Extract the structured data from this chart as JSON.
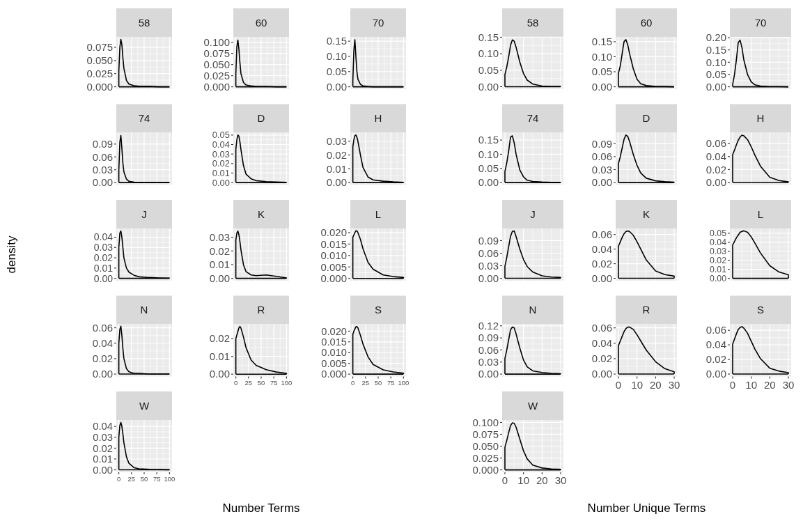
{
  "chart_data": [
    {
      "type": "line",
      "title": "58",
      "x": [
        0,
        0,
        2,
        4,
        6,
        8,
        10,
        15,
        20,
        30,
        40,
        60,
        80,
        100,
        100
      ],
      "values": [
        0,
        0.03,
        0.075,
        0.09,
        0.08,
        0.055,
        0.035,
        0.012,
        0.005,
        0.002,
        0.001,
        0.001,
        0,
        0,
        0
      ],
      "color": "#000000",
      "ref_lines": [
        {
          "axis": "y",
          "value": 0,
          "color": "#000000"
        }
      ],
      "xlim": [
        -5,
        105
      ],
      "xticks": [
        0,
        25,
        50,
        75,
        100
      ],
      "ylim": [
        -0.0045,
        0.0948
      ],
      "yticks": [
        {
          "value": 0,
          "label": "0.000"
        },
        {
          "value": 0.025,
          "label": "0.025"
        },
        {
          "value": 0.05,
          "label": "0.050"
        },
        {
          "value": 0.075,
          "label": "0.075"
        }
      ],
      "grid": true,
      "tick_labels": "y"
    },
    {
      "type": "line",
      "title": "60",
      "x": [
        0,
        0,
        2,
        4,
        6,
        8,
        10,
        15,
        20,
        30,
        40,
        60,
        80,
        100,
        100
      ],
      "values": [
        0,
        0.03,
        0.09,
        0.105,
        0.085,
        0.055,
        0.03,
        0.01,
        0.004,
        0.002,
        0.001,
        0.001,
        0,
        0,
        0
      ],
      "color": "#000000",
      "ref_lines": [
        {
          "axis": "y",
          "value": 0,
          "color": "#000000"
        }
      ],
      "xlim": [
        -5,
        105
      ],
      "xticks": [
        0,
        25,
        50,
        75,
        100
      ],
      "ylim": [
        -0.0053,
        0.112
      ],
      "yticks": [
        {
          "value": 0,
          "label": "0.000"
        },
        {
          "value": 0.025,
          "label": "0.025"
        },
        {
          "value": 0.05,
          "label": "0.050"
        },
        {
          "value": 0.075,
          "label": "0.075"
        },
        {
          "value": 0.1,
          "label": "0.100"
        }
      ],
      "grid": true,
      "tick_labels": "y"
    },
    {
      "type": "line",
      "title": "70",
      "x": [
        0,
        0,
        2,
        4,
        6,
        8,
        10,
        15,
        20,
        30,
        40,
        60,
        80,
        100,
        100
      ],
      "values": [
        0,
        0.02,
        0.12,
        0.155,
        0.1,
        0.05,
        0.025,
        0.008,
        0.003,
        0.001,
        0,
        0,
        0,
        0,
        0
      ],
      "color": "#000000",
      "ref_lines": [
        {
          "axis": "y",
          "value": 0,
          "color": "#000000"
        }
      ],
      "xlim": [
        -5,
        105
      ],
      "xticks": [
        0,
        25,
        50,
        75,
        100
      ],
      "ylim": [
        -0.0078,
        0.164
      ],
      "yticks": [
        {
          "value": 0,
          "label": "0.00"
        },
        {
          "value": 0.05,
          "label": "0.05"
        },
        {
          "value": 0.1,
          "label": "0.10"
        },
        {
          "value": 0.15,
          "label": "0.15"
        }
      ],
      "grid": true,
      "tick_labels": "y"
    },
    {
      "type": "line",
      "title": "74",
      "x": [
        0,
        0,
        2,
        4,
        6,
        8,
        10,
        15,
        20,
        30,
        40,
        60,
        80,
        100,
        100
      ],
      "values": [
        0,
        0.03,
        0.095,
        0.11,
        0.08,
        0.045,
        0.025,
        0.008,
        0.003,
        0.001,
        0,
        0,
        0,
        0,
        0
      ],
      "color": "#000000",
      "ref_lines": [
        {
          "axis": "y",
          "value": 0,
          "color": "#000000"
        }
      ],
      "xlim": [
        -5,
        105
      ],
      "xticks": [
        0,
        25,
        50,
        75,
        100
      ],
      "ylim": [
        -0.0055,
        0.1166
      ],
      "yticks": [
        {
          "value": 0,
          "label": "0.00"
        },
        {
          "value": 0.03,
          "label": "0.03"
        },
        {
          "value": 0.06,
          "label": "0.06"
        },
        {
          "value": 0.09,
          "label": "0.09"
        }
      ],
      "grid": true,
      "tick_labels": "y"
    },
    {
      "type": "line",
      "title": "D",
      "x": [
        0,
        0,
        2,
        4,
        6,
        8,
        10,
        15,
        20,
        30,
        40,
        60,
        80,
        100,
        100
      ],
      "values": [
        0,
        0.035,
        0.045,
        0.05,
        0.049,
        0.043,
        0.035,
        0.018,
        0.009,
        0.004,
        0.002,
        0.001,
        0.0005,
        0.0002,
        0
      ],
      "color": "#000000",
      "ref_lines": [
        {
          "axis": "y",
          "value": 0,
          "color": "#000000"
        }
      ],
      "xlim": [
        -5,
        105
      ],
      "xticks": [
        0,
        25,
        50,
        75,
        100
      ],
      "ylim": [
        -0.0025,
        0.0525
      ],
      "yticks": [
        {
          "value": 0,
          "label": "0.00"
        },
        {
          "value": 0.01,
          "label": "0.01"
        },
        {
          "value": 0.02,
          "label": "0.02"
        },
        {
          "value": 0.03,
          "label": "0.03"
        },
        {
          "value": 0.04,
          "label": "0.04"
        },
        {
          "value": 0.05,
          "label": "0.05"
        }
      ],
      "grid": true,
      "tick_labels": "y"
    },
    {
      "type": "line",
      "title": "H",
      "x": [
        0,
        0,
        2,
        4,
        6,
        8,
        10,
        15,
        20,
        30,
        40,
        60,
        80,
        100,
        100
      ],
      "values": [
        0,
        0.026,
        0.031,
        0.034,
        0.0345,
        0.033,
        0.03,
        0.02,
        0.011,
        0.004,
        0.002,
        0.001,
        0.0005,
        0.0002,
        0
      ],
      "color": "#000000",
      "ref_lines": [
        {
          "axis": "y",
          "value": 0,
          "color": "#000000"
        }
      ],
      "xlim": [
        -5,
        105
      ],
      "xticks": [
        0,
        25,
        50,
        75,
        100
      ],
      "ylim": [
        -0.0017,
        0.0362
      ],
      "yticks": [
        {
          "value": 0,
          "label": "0.00"
        },
        {
          "value": 0.01,
          "label": "0.01"
        },
        {
          "value": 0.02,
          "label": "0.02"
        },
        {
          "value": 0.03,
          "label": "0.03"
        }
      ],
      "grid": true,
      "tick_labels": "y"
    },
    {
      "type": "line",
      "title": "J",
      "ylabel": "density",
      "x": [
        0,
        0,
        2,
        4,
        6,
        8,
        10,
        15,
        20,
        30,
        40,
        60,
        80,
        100,
        100
      ],
      "values": [
        0,
        0.03,
        0.044,
        0.046,
        0.04,
        0.03,
        0.02,
        0.01,
        0.006,
        0.003,
        0.0015,
        0.0008,
        0.0004,
        0.0002,
        0
      ],
      "color": "#000000",
      "ref_lines": [
        {
          "axis": "y",
          "value": 0,
          "color": "#000000"
        }
      ],
      "xlim": [
        -5,
        105
      ],
      "xticks": [
        0,
        25,
        50,
        75,
        100
      ],
      "ylim": [
        -0.0023,
        0.0485
      ],
      "yticks": [
        {
          "value": 0,
          "label": "0.00"
        },
        {
          "value": 0.01,
          "label": "0.01"
        },
        {
          "value": 0.02,
          "label": "0.02"
        },
        {
          "value": 0.03,
          "label": "0.03"
        },
        {
          "value": 0.04,
          "label": "0.04"
        }
      ],
      "grid": true,
      "tick_labels": "y"
    },
    {
      "type": "line",
      "title": "K",
      "x": [
        0,
        0,
        2,
        4,
        6,
        8,
        10,
        15,
        20,
        30,
        40,
        60,
        80,
        100,
        100
      ],
      "values": [
        0,
        0.028,
        0.033,
        0.0345,
        0.032,
        0.027,
        0.021,
        0.01,
        0.005,
        0.0025,
        0.002,
        0.0025,
        0.0015,
        0.0003,
        0
      ],
      "color": "#000000",
      "ref_lines": [
        {
          "axis": "y",
          "value": 0,
          "color": "#000000"
        }
      ],
      "xlim": [
        -5,
        105
      ],
      "xticks": [
        0,
        25,
        50,
        75,
        100
      ],
      "ylim": [
        -0.0017,
        0.0364
      ],
      "yticks": [
        {
          "value": 0,
          "label": "0.00"
        },
        {
          "value": 0.01,
          "label": "0.01"
        },
        {
          "value": 0.02,
          "label": "0.02"
        },
        {
          "value": 0.03,
          "label": "0.03"
        }
      ],
      "grid": true,
      "tick_labels": "y"
    },
    {
      "type": "line",
      "title": "L",
      "x": [
        0,
        0,
        2,
        4,
        6,
        8,
        10,
        15,
        20,
        30,
        40,
        60,
        80,
        100,
        100
      ],
      "values": [
        0,
        0.018,
        0.019,
        0.02,
        0.0207,
        0.0208,
        0.02,
        0.017,
        0.013,
        0.007,
        0.004,
        0.0015,
        0.0008,
        0.0004,
        0
      ],
      "color": "#000000",
      "ref_lines": [
        {
          "axis": "y",
          "value": 0,
          "color": "#000000"
        }
      ],
      "xlim": [
        -5,
        105
      ],
      "xticks": [
        0,
        25,
        50,
        75,
        100
      ],
      "ylim": [
        -0.001,
        0.0218
      ],
      "yticks": [
        {
          "value": 0,
          "label": "0.000"
        },
        {
          "value": 0.005,
          "label": "0.005"
        },
        {
          "value": 0.01,
          "label": "0.010"
        },
        {
          "value": 0.015,
          "label": "0.015"
        },
        {
          "value": 0.02,
          "label": "0.020"
        }
      ],
      "grid": true,
      "tick_labels": "y"
    },
    {
      "type": "line",
      "title": "N",
      "x": [
        0,
        0,
        2,
        4,
        6,
        8,
        10,
        15,
        20,
        30,
        40,
        60,
        80,
        100,
        100
      ],
      "values": [
        0,
        0.04,
        0.058,
        0.062,
        0.05,
        0.033,
        0.02,
        0.007,
        0.003,
        0.001,
        0.001,
        0,
        0,
        0,
        0
      ],
      "color": "#000000",
      "ref_lines": [
        {
          "axis": "y",
          "value": 0,
          "color": "#000000"
        }
      ],
      "xlim": [
        -5,
        105
      ],
      "xticks": [
        0,
        25,
        50,
        75,
        100
      ],
      "ylim": [
        -0.0031,
        0.0646
      ],
      "yticks": [
        {
          "value": 0,
          "label": "0.00"
        },
        {
          "value": 0.02,
          "label": "0.02"
        },
        {
          "value": 0.04,
          "label": "0.04"
        },
        {
          "value": 0.06,
          "label": "0.06"
        }
      ],
      "grid": true,
      "tick_labels": "y"
    },
    {
      "type": "line",
      "title": "R",
      "xlabel": "Number Terms",
      "x": [
        0,
        0,
        2,
        4,
        6,
        8,
        10,
        15,
        20,
        30,
        40,
        60,
        80,
        100,
        100
      ],
      "values": [
        0,
        0.02,
        0.022,
        0.024,
        0.026,
        0.0268,
        0.026,
        0.021,
        0.015,
        0.008,
        0.005,
        0.0025,
        0.0012,
        0.0004,
        0
      ],
      "color": "#000000",
      "ref_lines": [
        {
          "axis": "y",
          "value": 0,
          "color": "#000000"
        }
      ],
      "xlim": [
        -5,
        105
      ],
      "xticks": [
        0,
        25,
        50,
        75,
        100
      ],
      "ylim": [
        -0.0013,
        0.0281
      ],
      "yticks": [
        {
          "value": 0,
          "label": "0.00"
        },
        {
          "value": 0.01,
          "label": "0.01"
        },
        {
          "value": 0.02,
          "label": "0.02"
        }
      ],
      "grid": true
    },
    {
      "type": "line",
      "title": "S",
      "x": [
        0,
        0,
        2,
        4,
        6,
        8,
        10,
        15,
        20,
        30,
        40,
        60,
        80,
        100,
        100
      ],
      "values": [
        0,
        0.0185,
        0.02,
        0.021,
        0.022,
        0.0221,
        0.0215,
        0.018,
        0.014,
        0.008,
        0.0045,
        0.002,
        0.001,
        0.0004,
        0
      ],
      "color": "#000000",
      "ref_lines": [
        {
          "axis": "y",
          "value": 0,
          "color": "#000000"
        }
      ],
      "xlim": [
        -5,
        105
      ],
      "xticks": [
        0,
        25,
        50,
        75,
        100
      ],
      "ylim": [
        -0.0011,
        0.0232
      ],
      "yticks": [
        {
          "value": 0,
          "label": "0.000"
        },
        {
          "value": 0.005,
          "label": "0.005"
        },
        {
          "value": 0.01,
          "label": "0.010"
        },
        {
          "value": 0.015,
          "label": "0.015"
        },
        {
          "value": 0.02,
          "label": "0.020"
        }
      ],
      "grid": true
    },
    {
      "type": "line",
      "title": "W",
      "x": [
        0,
        0,
        2,
        4,
        6,
        8,
        10,
        15,
        20,
        30,
        40,
        60,
        80,
        100,
        100
      ],
      "values": [
        0,
        0.03,
        0.041,
        0.0437,
        0.04,
        0.033,
        0.025,
        0.012,
        0.006,
        0.002,
        0.001,
        0.0005,
        0.0003,
        0.0001,
        0
      ],
      "color": "#000000",
      "ref_lines": [
        {
          "axis": "y",
          "value": 0,
          "color": "#000000"
        }
      ],
      "xlim": [
        -5,
        105
      ],
      "xticks": [
        0,
        25,
        50,
        75,
        100
      ],
      "ylim": [
        -0.0022,
        0.0459
      ],
      "yticks": [
        {
          "value": 0,
          "label": "0.00"
        },
        {
          "value": 0.01,
          "label": "0.01"
        },
        {
          "value": 0.02,
          "label": "0.02"
        },
        {
          "value": 0.03,
          "label": "0.03"
        },
        {
          "value": 0.04,
          "label": "0.04"
        }
      ],
      "grid": true
    },
    {
      "type": "line",
      "title": "58",
      "x": [
        0,
        0,
        1,
        2,
        3,
        4,
        5,
        6,
        8,
        10,
        12,
        15,
        20,
        25,
        30,
        30
      ],
      "values": [
        0,
        0.037,
        0.06,
        0.09,
        0.125,
        0.142,
        0.138,
        0.12,
        0.075,
        0.04,
        0.02,
        0.008,
        0.002,
        0.001,
        0.001,
        0
      ],
      "color": "#000000",
      "ref_lines": [
        {
          "axis": "y",
          "value": 0,
          "color": "#000000"
        }
      ],
      "xlim": [
        -1.5,
        31.5
      ],
      "xticks": [
        0,
        10,
        20,
        30
      ],
      "ylim": [
        -0.0075,
        0.151
      ],
      "yticks": [
        {
          "value": 0,
          "label": "0.00"
        },
        {
          "value": 0.05,
          "label": "0.05"
        },
        {
          "value": 0.1,
          "label": "0.10"
        },
        {
          "value": 0.15,
          "label": "0.15"
        }
      ],
      "grid": true,
      "tick_labels": "y"
    },
    {
      "type": "line",
      "title": "60",
      "x": [
        0,
        0,
        1,
        2,
        3,
        4,
        5,
        6,
        8,
        10,
        12,
        15,
        20,
        25,
        30,
        30
      ],
      "values": [
        0,
        0.045,
        0.07,
        0.11,
        0.15,
        0.157,
        0.14,
        0.11,
        0.06,
        0.025,
        0.01,
        0.004,
        0.001,
        0.001,
        0,
        0
      ],
      "color": "#000000",
      "ref_lines": [
        {
          "axis": "y",
          "value": 0,
          "color": "#000000"
        }
      ],
      "xlim": [
        -1.5,
        31.5
      ],
      "xticks": [
        0,
        10,
        20,
        30
      ],
      "ylim": [
        -0.0079,
        0.166
      ],
      "yticks": [
        {
          "value": 0,
          "label": "0.00"
        },
        {
          "value": 0.05,
          "label": "0.05"
        },
        {
          "value": 0.1,
          "label": "0.10"
        },
        {
          "value": 0.15,
          "label": "0.15"
        }
      ],
      "grid": true,
      "tick_labels": "y"
    },
    {
      "type": "line",
      "title": "70",
      "x": [
        0,
        0,
        1,
        2,
        3,
        4,
        5,
        6,
        8,
        10,
        12,
        15,
        20,
        25,
        30,
        30
      ],
      "values": [
        0,
        0.01,
        0.05,
        0.11,
        0.18,
        0.19,
        0.16,
        0.11,
        0.05,
        0.02,
        0.008,
        0.003,
        0.001,
        0.001,
        0,
        0
      ],
      "color": "#000000",
      "ref_lines": [
        {
          "axis": "y",
          "value": 0,
          "color": "#000000"
        }
      ],
      "xlim": [
        -1.5,
        31.5
      ],
      "xticks": [
        0,
        10,
        20,
        30
      ],
      "ylim": [
        -0.0097,
        0.203
      ],
      "yticks": [
        {
          "value": 0,
          "label": "0.00"
        },
        {
          "value": 0.05,
          "label": "0.05"
        },
        {
          "value": 0.1,
          "label": "0.10"
        },
        {
          "value": 0.15,
          "label": "0.15"
        },
        {
          "value": 0.2,
          "label": "0.20"
        }
      ],
      "grid": true,
      "tick_labels": "y"
    },
    {
      "type": "line",
      "title": "74",
      "x": [
        0,
        0,
        1,
        2,
        3,
        4,
        5,
        6,
        8,
        10,
        12,
        15,
        20,
        25,
        30,
        30
      ],
      "values": [
        0,
        0.039,
        0.07,
        0.11,
        0.16,
        0.165,
        0.14,
        0.1,
        0.045,
        0.02,
        0.008,
        0.004,
        0.002,
        0.001,
        0.001,
        0
      ],
      "color": "#000000",
      "ref_lines": [
        {
          "axis": "y",
          "value": 0,
          "color": "#000000"
        }
      ],
      "xlim": [
        -1.5,
        31.5
      ],
      "xticks": [
        0,
        10,
        20,
        30
      ],
      "ylim": [
        -0.0084,
        0.176
      ],
      "yticks": [
        {
          "value": 0,
          "label": "0.00"
        },
        {
          "value": 0.05,
          "label": "0.05"
        },
        {
          "value": 0.1,
          "label": "0.10"
        },
        {
          "value": 0.15,
          "label": "0.15"
        }
      ],
      "grid": true,
      "tick_labels": "y"
    },
    {
      "type": "line",
      "title": "D",
      "x": [
        0,
        0,
        1,
        2,
        3,
        4,
        5,
        6,
        8,
        10,
        12,
        15,
        20,
        25,
        30,
        30
      ],
      "values": [
        0,
        0.044,
        0.06,
        0.08,
        0.1,
        0.11,
        0.107,
        0.095,
        0.065,
        0.04,
        0.022,
        0.01,
        0.004,
        0.002,
        0.001,
        0
      ],
      "color": "#000000",
      "ref_lines": [
        {
          "axis": "y",
          "value": 0,
          "color": "#000000"
        }
      ],
      "xlim": [
        -1.5,
        31.5
      ],
      "xticks": [
        0,
        10,
        20,
        30
      ],
      "ylim": [
        -0.0055,
        0.1155
      ],
      "yticks": [
        {
          "value": 0,
          "label": "0.00"
        },
        {
          "value": 0.03,
          "label": "0.03"
        },
        {
          "value": 0.06,
          "label": "0.06"
        },
        {
          "value": 0.09,
          "label": "0.09"
        }
      ],
      "grid": true,
      "tick_labels": "y"
    },
    {
      "type": "line",
      "title": "H",
      "x": [
        0,
        0,
        1,
        2,
        3,
        4,
        5,
        6,
        8,
        10,
        12,
        15,
        20,
        25,
        30,
        30
      ],
      "values": [
        0,
        0.043,
        0.05,
        0.058,
        0.065,
        0.07,
        0.073,
        0.072,
        0.066,
        0.055,
        0.042,
        0.025,
        0.008,
        0.003,
        0.001,
        0
      ],
      "color": "#000000",
      "ref_lines": [
        {
          "axis": "y",
          "value": 0,
          "color": "#000000"
        }
      ],
      "xlim": [
        -1.5,
        31.5
      ],
      "xticks": [
        0,
        10,
        20,
        30
      ],
      "ylim": [
        -0.0037,
        0.0767
      ],
      "yticks": [
        {
          "value": 0,
          "label": "0.00"
        },
        {
          "value": 0.02,
          "label": "0.02"
        },
        {
          "value": 0.04,
          "label": "0.04"
        },
        {
          "value": 0.06,
          "label": "0.06"
        }
      ],
      "grid": true,
      "tick_labels": "y"
    },
    {
      "type": "line",
      "title": "J",
      "x": [
        0,
        0,
        1,
        2,
        3,
        4,
        5,
        6,
        8,
        10,
        12,
        15,
        20,
        25,
        30,
        30
      ],
      "values": [
        0,
        0.029,
        0.05,
        0.075,
        0.1,
        0.112,
        0.113,
        0.1,
        0.07,
        0.045,
        0.028,
        0.015,
        0.006,
        0.003,
        0.002,
        0
      ],
      "color": "#000000",
      "ref_lines": [
        {
          "axis": "y",
          "value": 0,
          "color": "#000000"
        }
      ],
      "xlim": [
        -1.5,
        31.5
      ],
      "xticks": [
        0,
        10,
        20,
        30
      ],
      "ylim": [
        -0.0057,
        0.119
      ],
      "yticks": [
        {
          "value": 0,
          "label": "0.00"
        },
        {
          "value": 0.03,
          "label": "0.03"
        },
        {
          "value": 0.06,
          "label": "0.06"
        },
        {
          "value": 0.09,
          "label": "0.09"
        }
      ],
      "grid": true,
      "tick_labels": "y"
    },
    {
      "type": "line",
      "title": "K",
      "x": [
        0,
        0,
        1,
        2,
        3,
        4,
        5,
        6,
        8,
        10,
        12,
        15,
        20,
        25,
        30,
        30
      ],
      "values": [
        0,
        0.044,
        0.05,
        0.056,
        0.061,
        0.064,
        0.065,
        0.064,
        0.059,
        0.05,
        0.04,
        0.025,
        0.01,
        0.005,
        0.003,
        0
      ],
      "color": "#000000",
      "ref_lines": [
        {
          "axis": "y",
          "value": 0,
          "color": "#000000"
        }
      ],
      "xlim": [
        -1.5,
        31.5
      ],
      "xticks": [
        0,
        10,
        20,
        30
      ],
      "ylim": [
        -0.0033,
        0.0683
      ],
      "yticks": [
        {
          "value": 0,
          "label": "0.00"
        },
        {
          "value": 0.02,
          "label": "0.02"
        },
        {
          "value": 0.04,
          "label": "0.04"
        },
        {
          "value": 0.06,
          "label": "0.06"
        }
      ],
      "grid": true,
      "tick_labels": "y"
    },
    {
      "type": "line",
      "title": "L",
      "x": [
        0,
        0,
        1,
        2,
        3,
        4,
        5,
        6,
        8,
        10,
        12,
        15,
        20,
        25,
        30,
        30
      ],
      "values": [
        0,
        0.037,
        0.041,
        0.045,
        0.048,
        0.051,
        0.052,
        0.0527,
        0.051,
        0.046,
        0.039,
        0.028,
        0.014,
        0.007,
        0.004,
        0
      ],
      "color": "#000000",
      "ref_lines": [
        {
          "axis": "y",
          "value": 0,
          "color": "#000000"
        }
      ],
      "xlim": [
        -1.5,
        31.5
      ],
      "xticks": [
        0,
        10,
        20,
        30
      ],
      "ylim": [
        -0.0026,
        0.0553
      ],
      "yticks": [
        {
          "value": 0,
          "label": "0.00"
        },
        {
          "value": 0.01,
          "label": "0.01"
        },
        {
          "value": 0.02,
          "label": "0.02"
        },
        {
          "value": 0.03,
          "label": "0.03"
        },
        {
          "value": 0.04,
          "label": "0.04"
        },
        {
          "value": 0.05,
          "label": "0.05"
        }
      ],
      "grid": true,
      "tick_labels": "y"
    },
    {
      "type": "line",
      "title": "N",
      "x": [
        0,
        0,
        1,
        2,
        3,
        4,
        5,
        6,
        8,
        10,
        12,
        15,
        20,
        25,
        30,
        30
      ],
      "values": [
        0,
        0.039,
        0.06,
        0.085,
        0.11,
        0.117,
        0.115,
        0.1,
        0.065,
        0.035,
        0.018,
        0.008,
        0.004,
        0.002,
        0.001,
        0
      ],
      "color": "#000000",
      "ref_lines": [
        {
          "axis": "y",
          "value": 0,
          "color": "#000000"
        }
      ],
      "xlim": [
        -1.5,
        31.5
      ],
      "xticks": [
        0,
        10,
        20,
        30
      ],
      "ylim": [
        -0.0059,
        0.124
      ],
      "yticks": [
        {
          "value": 0,
          "label": "0.00"
        },
        {
          "value": 0.03,
          "label": "0.03"
        },
        {
          "value": 0.06,
          "label": "0.06"
        },
        {
          "value": 0.09,
          "label": "0.09"
        },
        {
          "value": 0.12,
          "label": "0.12"
        }
      ],
      "grid": true,
      "tick_labels": "y"
    },
    {
      "type": "line",
      "title": "R",
      "xlabel": "Number Unique Terms",
      "x": [
        0,
        0,
        1,
        2,
        3,
        4,
        5,
        6,
        8,
        10,
        12,
        15,
        20,
        25,
        30,
        30
      ],
      "values": [
        0,
        0.037,
        0.043,
        0.049,
        0.055,
        0.059,
        0.061,
        0.061,
        0.058,
        0.051,
        0.043,
        0.031,
        0.016,
        0.007,
        0.003,
        0
      ],
      "color": "#000000",
      "ref_lines": [
        {
          "axis": "y",
          "value": 0,
          "color": "#000000"
        }
      ],
      "xlim": [
        -1.5,
        31.5
      ],
      "xticks": [
        0,
        10,
        20,
        30
      ],
      "ylim": [
        -0.0031,
        0.0647
      ],
      "yticks": [
        {
          "value": 0,
          "label": "0.00"
        },
        {
          "value": 0.02,
          "label": "0.02"
        },
        {
          "value": 0.04,
          "label": "0.04"
        },
        {
          "value": 0.06,
          "label": "0.06"
        }
      ],
      "grid": true
    },
    {
      "type": "line",
      "title": "S",
      "x": [
        0,
        0,
        1,
        2,
        3,
        4,
        5,
        6,
        8,
        10,
        12,
        15,
        20,
        25,
        30,
        30
      ],
      "values": [
        0,
        0.041,
        0.048,
        0.055,
        0.061,
        0.064,
        0.065,
        0.063,
        0.056,
        0.045,
        0.034,
        0.021,
        0.008,
        0.004,
        0.002,
        0
      ],
      "color": "#000000",
      "ref_lines": [
        {
          "axis": "y",
          "value": 0,
          "color": "#000000"
        }
      ],
      "xlim": [
        -1.5,
        31.5
      ],
      "xticks": [
        0,
        10,
        20,
        30
      ],
      "ylim": [
        -0.0033,
        0.0683
      ],
      "yticks": [
        {
          "value": 0,
          "label": "0.00"
        },
        {
          "value": 0.02,
          "label": "0.02"
        },
        {
          "value": 0.04,
          "label": "0.04"
        },
        {
          "value": 0.06,
          "label": "0.06"
        }
      ],
      "grid": true
    },
    {
      "type": "line",
      "title": "W",
      "x": [
        0,
        0,
        1,
        2,
        3,
        4,
        5,
        6,
        8,
        10,
        12,
        15,
        20,
        25,
        30,
        30
      ],
      "values": [
        0,
        0.048,
        0.062,
        0.078,
        0.093,
        0.099,
        0.098,
        0.09,
        0.065,
        0.04,
        0.023,
        0.01,
        0.004,
        0.002,
        0.001,
        0
      ],
      "color": "#000000",
      "ref_lines": [
        {
          "axis": "y",
          "value": 0,
          "color": "#000000"
        }
      ],
      "xlim": [
        -1.5,
        31.5
      ],
      "xticks": [
        0,
        10,
        20,
        30
      ],
      "ylim": [
        -0.005,
        0.105
      ],
      "yticks": [
        {
          "value": 0,
          "label": "0.000"
        },
        {
          "value": 0.025,
          "label": "0.025"
        },
        {
          "value": 0.05,
          "label": "0.050"
        },
        {
          "value": 0.075,
          "label": "0.075"
        },
        {
          "value": 0.1,
          "label": "0.100"
        }
      ],
      "grid": true
    }
  ]
}
